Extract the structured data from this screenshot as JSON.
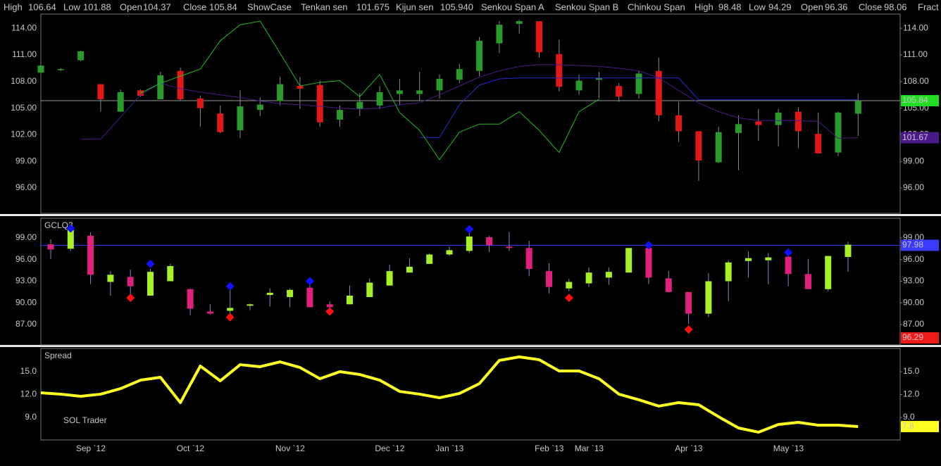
{
  "header": [
    {
      "text": "High",
      "color": "#c8c8c8"
    },
    {
      "text": "106.64",
      "color": "#c8c8c8"
    },
    {
      "text": "Low",
      "color": "#c8c8c8"
    },
    {
      "text": "101.88",
      "color": "#c8c8c8"
    },
    {
      "text": "Open",
      "color": "#c8c8c8"
    },
    {
      "text": "104.37",
      "color": "#c8c8c8"
    },
    {
      "text": "Close",
      "color": "#c8c8c8"
    },
    {
      "text": "105.84",
      "color": "#c8c8c8"
    },
    {
      "text": "ShowCase",
      "color": "#ff2a2a"
    },
    {
      "text": "Tenkan sen",
      "color": "#4a1a8a"
    },
    {
      "text": "101.675",
      "color": "#4a1a8a"
    },
    {
      "text": "Kijun sen",
      "color": "#2a2aff"
    },
    {
      "text": "105.940",
      "color": "#2a2aff"
    },
    {
      "text": "Senkou Span A",
      "color": "#ffb070"
    },
    {
      "text": "Senkou Span B",
      "color": "#e8e8e8"
    },
    {
      "text": "Chinkou Span",
      "color": "#22dd22"
    },
    {
      "text": "High",
      "color": "#8a8aff"
    },
    {
      "text": "98.48",
      "color": "#8a8aff"
    },
    {
      "text": "Low",
      "color": "#8a8aff"
    },
    {
      "text": "94.29",
      "color": "#8a8aff"
    },
    {
      "text": "Open",
      "color": "#8a8aff"
    },
    {
      "text": "96.36",
      "color": "#8a8aff"
    },
    {
      "text": "Close",
      "color": "#8a8aff"
    },
    {
      "text": "98.06",
      "color": "#8a8aff"
    },
    {
      "text": "Fract",
      "color": "#4a4aff"
    }
  ],
  "chart_data": [
    {
      "type": "candlestick",
      "up_color": "#2a9a2a",
      "down_color": "#e01818",
      "wick_color": "#8a8a8a",
      "open": [
        109.0,
        109.3,
        110.4,
        107.7,
        104.6,
        107.0,
        106.0,
        109.2,
        106.1,
        104.4,
        102.5,
        104.8,
        105.8,
        107.5,
        107.6,
        103.7,
        104.9,
        105.3,
        106.6,
        106.6,
        107.0,
        108.2,
        109.2,
        112.3,
        114.5,
        114.8,
        111.1,
        107.0,
        108.2,
        107.5,
        106.6,
        109.2,
        104.2,
        102.4,
        98.9,
        102.2,
        103.5,
        103.1,
        104.6,
        102.1,
        100.0,
        104.37
      ],
      "high": [
        109.9,
        109.5,
        111.5,
        107.7,
        107.1,
        107.1,
        109.1,
        109.6,
        106.4,
        105.3,
        107.0,
        106.2,
        108.5,
        108.5,
        108.1,
        105.3,
        106.7,
        107.5,
        108.3,
        109.1,
        108.8,
        110.0,
        113.0,
        114.8,
        114.95,
        114.8,
        112.7,
        108.8,
        109.1,
        107.8,
        109.2,
        110.7,
        105.7,
        102.4,
        102.9,
        104.2,
        104.9,
        104.9,
        105.1,
        104.5,
        104.6,
        106.64
      ],
      "low": [
        108.9,
        109.2,
        110.3,
        104.6,
        104.6,
        106.3,
        106.0,
        105.9,
        102.9,
        102.2,
        101.6,
        104.1,
        105.3,
        104.9,
        102.9,
        102.9,
        104.1,
        104.9,
        105.3,
        105.9,
        106.1,
        107.8,
        108.6,
        111.2,
        113.4,
        110.7,
        106.9,
        106.5,
        106.1,
        105.7,
        106.1,
        103.5,
        101.2,
        96.8,
        98.8,
        98.0,
        101.3,
        100.7,
        100.5,
        99.9,
        99.6,
        101.88
      ],
      "close": [
        109.8,
        109.4,
        111.4,
        106.0,
        106.8,
        106.4,
        108.7,
        106.0,
        105.0,
        102.3,
        105.2,
        105.4,
        107.7,
        107.2,
        103.4,
        104.8,
        105.7,
        106.8,
        107.0,
        107.0,
        108.3,
        109.4,
        112.6,
        114.4,
        114.8,
        111.3,
        107.4,
        108.1,
        108.4,
        106.3,
        108.9,
        104.2,
        102.4,
        99.1,
        102.3,
        103.2,
        103.1,
        104.5,
        102.4,
        99.9,
        104.5,
        105.84
      ],
      "lines": [
        {
          "color": "#4a1a8a",
          "values": [
            null,
            null,
            101.5,
            101.5,
            104.0,
            106.5,
            107.8,
            107.2,
            106.8,
            106.5,
            106.2,
            105.8,
            105.5,
            105.4,
            105.2,
            105.0,
            104.9,
            105.0,
            105.4,
            105.6,
            106.5,
            107.5,
            108.5,
            109.2,
            109.7,
            109.9,
            109.9,
            109.8,
            109.7,
            109.5,
            109.2,
            108.4,
            107.0,
            105.6,
            104.6,
            103.9,
            103.6,
            103.6,
            103.6,
            103.5,
            101.6,
            101.675
          ]
        },
        {
          "color": "#2a2ad0",
          "values": [
            null,
            null,
            null,
            null,
            null,
            null,
            null,
            null,
            null,
            null,
            null,
            null,
            null,
            null,
            null,
            null,
            null,
            null,
            null,
            101.7,
            101.7,
            105.4,
            107.6,
            108.3,
            108.4,
            108.4,
            108.4,
            108.4,
            108.4,
            108.4,
            108.4,
            108.4,
            108.4,
            105.94,
            105.94,
            105.94,
            105.94,
            105.94,
            105.94,
            105.94,
            105.94,
            105.94
          ]
        },
        {
          "color": "#22bb22",
          "values": [
            null,
            null,
            null,
            null,
            null,
            106.7,
            107.8,
            108.6,
            109.4,
            112.6,
            114.4,
            114.8,
            111.2,
            107.5,
            107.9,
            108.1,
            106.3,
            108.8,
            104.5,
            102.5,
            99.2,
            102.3,
            103.2,
            103.2,
            104.6,
            102.5,
            100.0,
            104.6,
            106.0,
            null,
            null,
            null,
            null,
            null,
            null,
            null,
            null,
            null,
            null,
            null,
            null,
            null
          ]
        }
      ],
      "hline": {
        "value": 105.84,
        "color": "#9a9a9a"
      },
      "right_labels": [
        {
          "value": 105.84,
          "color": "#22dd22",
          "text_color": "#003300"
        },
        {
          "value": 101.67,
          "color": "#4a1a8a",
          "text_color": "#8a7aa8"
        }
      ],
      "ylim": [
        93.15,
        115.6
      ],
      "yticks": [
        {
          "value": 96,
          "label": "96.00"
        },
        {
          "value": 99,
          "label": "99.00"
        },
        {
          "value": 102,
          "label": "102.00"
        },
        {
          "value": 105,
          "label": "105.00"
        },
        {
          "value": 108,
          "label": "108.00"
        },
        {
          "value": 111,
          "label": "111.00"
        },
        {
          "value": 114,
          "label": "114.00"
        }
      ]
    },
    {
      "type": "candlestick",
      "title": "GCLQ3",
      "up_color": "#a6f02a",
      "down_color": "#e0207e",
      "wick_color": "#8a8ab8",
      "open": [
        98.1,
        97.5,
        99.3,
        92.9,
        93.6,
        91.0,
        93.0,
        91.9,
        88.8,
        88.9,
        89.6,
        91.1,
        90.8,
        92.1,
        89.8,
        89.8,
        90.8,
        92.4,
        94.2,
        95.4,
        96.7,
        97.2,
        99.1,
        97.8,
        97.6,
        94.4,
        92.0,
        92.7,
        93.5,
        94.2,
        97.6,
        93.4,
        91.5,
        88.5,
        93.0,
        95.8,
        95.9,
        96.4,
        94.0,
        91.9,
        96.36
      ],
      "high": [
        98.8,
        100.6,
        99.8,
        94.4,
        94.6,
        94.7,
        95.4,
        92.0,
        89.8,
        91.8,
        89.9,
        92.0,
        92.0,
        92.5,
        90.2,
        92.4,
        93.4,
        95.3,
        96.2,
        96.9,
        97.8,
        99.8,
        99.3,
        99.8,
        98.6,
        95.5,
        93.3,
        94.9,
        94.9,
        97.6,
        98.1,
        94.4,
        91.5,
        94.1,
        95.9,
        97.1,
        96.9,
        96.9,
        96.1,
        96.5,
        98.48
      ],
      "low": [
        96.1,
        97.2,
        92.6,
        91.0,
        91.2,
        91.0,
        93.0,
        88.3,
        88.4,
        88.3,
        89.0,
        89.5,
        89.4,
        89.4,
        88.9,
        89.8,
        90.8,
        92.4,
        94.2,
        95.4,
        96.5,
        96.9,
        97.0,
        97.2,
        93.7,
        91.3,
        91.6,
        92.2,
        92.5,
        94.2,
        92.6,
        91.5,
        87.1,
        88.0,
        90.2,
        93.5,
        92.6,
        92.3,
        91.9,
        91.6,
        94.29
      ],
      "close": [
        97.4,
        100.1,
        93.9,
        93.9,
        92.3,
        94.3,
        95.1,
        89.2,
        88.5,
        89.3,
        89.8,
        91.4,
        91.8,
        89.4,
        89.4,
        91.0,
        92.8,
        94.4,
        95.0,
        96.7,
        97.3,
        99.2,
        98.0,
        97.6,
        94.7,
        92.2,
        92.9,
        94.2,
        94.3,
        97.6,
        93.5,
        91.5,
        88.5,
        93.0,
        95.6,
        96.2,
        96.3,
        94.0,
        91.9,
        96.5,
        98.06
      ],
      "fractals": [
        {
          "color": "#1010ff",
          "values": [
            null,
            100.3,
            null,
            null,
            null,
            95.4,
            null,
            null,
            null,
            92.3,
            null,
            null,
            null,
            93.0,
            null,
            null,
            null,
            null,
            null,
            null,
            null,
            100.2,
            null,
            null,
            null,
            null,
            null,
            null,
            null,
            null,
            98.0,
            null,
            null,
            null,
            null,
            null,
            null,
            97.0,
            null,
            null,
            null
          ]
        },
        {
          "color": "#ff1010",
          "values": [
            null,
            null,
            null,
            null,
            90.7,
            null,
            null,
            null,
            null,
            88.0,
            null,
            null,
            null,
            null,
            88.8,
            null,
            null,
            null,
            null,
            null,
            null,
            null,
            null,
            null,
            null,
            null,
            90.7,
            null,
            null,
            null,
            null,
            null,
            86.3,
            null,
            null,
            null,
            null,
            null,
            null,
            null,
            null
          ]
        }
      ],
      "hline": {
        "value": 97.98,
        "color": "#3a3aff"
      },
      "right_labels": [
        {
          "value": 97.98,
          "color": "#3a3aff",
          "text_color": "#b0b0ff"
        },
        {
          "value": 96.29,
          "color": "#ee1a1a",
          "text_color": "#7a0000",
          "anchor": "bottom"
        }
      ],
      "ylim": [
        84.17,
        101.73
      ],
      "yticks": [
        {
          "value": 87,
          "label": "87.00"
        },
        {
          "value": 90,
          "label": "90.00"
        },
        {
          "value": 93,
          "label": "93.00"
        },
        {
          "value": 96,
          "label": "96.00"
        },
        {
          "value": 99,
          "label": "99.00"
        }
      ]
    },
    {
      "type": "line",
      "title": "Spread",
      "annotation": "SOL Trader",
      "color": "#ffff22",
      "categories": [
        null,
        null,
        null,
        "Sep `12",
        null,
        null,
        null,
        null,
        "Oct `12",
        null,
        null,
        null,
        null,
        "Nov `12",
        null,
        null,
        null,
        null,
        "Dec `12",
        null,
        null,
        "Jan `13",
        null,
        null,
        null,
        null,
        "Feb `13",
        null,
        "Mar `13",
        null,
        null,
        null,
        null,
        "Apr `13",
        null,
        null,
        null,
        null,
        "May `13",
        null,
        null,
        null
      ],
      "values": [
        12.23,
        12.05,
        11.77,
        12.05,
        12.78,
        13.89,
        14.26,
        10.94,
        15.74,
        13.8,
        15.92,
        15.65,
        16.29,
        15.55,
        14.08,
        15.0,
        14.63,
        13.89,
        12.41,
        12.05,
        11.58,
        12.14,
        13.43,
        16.48,
        16.94,
        16.57,
        15.09,
        15.09,
        14.08,
        12.05,
        11.31,
        10.48,
        10.94,
        10.66,
        9.09,
        7.61,
        7.06,
        8.07,
        8.35,
        7.98,
        7.98,
        7.8
      ],
      "right_labels": [
        {
          "value": 7.8,
          "color": "#ffff22",
          "text_color": "#000000"
        }
      ],
      "ylim": [
        6.04,
        18.05
      ],
      "yticks": [
        {
          "value": 9,
          "label": "9.0"
        },
        {
          "value": 12,
          "label": "12.0"
        },
        {
          "value": 15,
          "label": "15.0"
        }
      ]
    }
  ]
}
